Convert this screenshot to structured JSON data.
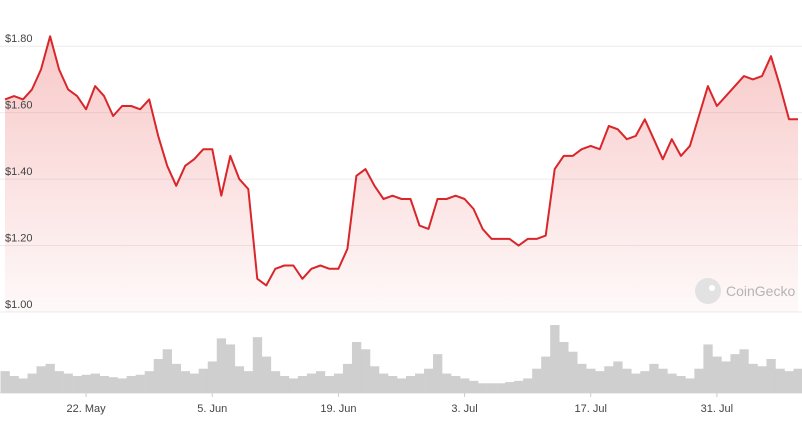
{
  "chart_data": {
    "type": "line",
    "categories": [
      null,
      null,
      null,
      null,
      null,
      null,
      null,
      null,
      null,
      "22. May",
      null,
      null,
      null,
      null,
      null,
      null,
      null,
      null,
      null,
      null,
      null,
      null,
      null,
      "5. Jun",
      null,
      null,
      null,
      null,
      null,
      null,
      null,
      null,
      null,
      null,
      null,
      null,
      null,
      "19. Jun",
      null,
      null,
      null,
      null,
      null,
      null,
      null,
      null,
      null,
      null,
      null,
      null,
      null,
      "3. Jul",
      null,
      null,
      null,
      null,
      null,
      null,
      null,
      null,
      null,
      null,
      null,
      null,
      null,
      "17. Jul",
      null,
      null,
      null,
      null,
      null,
      null,
      null,
      null,
      null,
      null,
      null,
      null,
      null,
      "31. Jul",
      null,
      null,
      null,
      null,
      null,
      null,
      null,
      null,
      null
    ],
    "series": [
      {
        "name": "Price",
        "color": "#d9262a",
        "values": [
          1.64,
          1.65,
          1.64,
          1.67,
          1.73,
          1.83,
          1.73,
          1.67,
          1.65,
          1.61,
          1.68,
          1.65,
          1.59,
          1.62,
          1.62,
          1.61,
          1.64,
          1.53,
          1.44,
          1.38,
          1.44,
          1.46,
          1.49,
          1.49,
          1.35,
          1.47,
          1.4,
          1.37,
          1.1,
          1.08,
          1.13,
          1.14,
          1.14,
          1.1,
          1.13,
          1.14,
          1.13,
          1.13,
          1.19,
          1.41,
          1.43,
          1.38,
          1.34,
          1.35,
          1.34,
          1.34,
          1.26,
          1.25,
          1.34,
          1.34,
          1.35,
          1.34,
          1.31,
          1.25,
          1.22,
          1.22,
          1.22,
          1.2,
          1.22,
          1.22,
          1.23,
          1.43,
          1.47,
          1.47,
          1.49,
          1.5,
          1.49,
          1.56,
          1.55,
          1.52,
          1.53,
          1.58,
          1.52,
          1.46,
          1.52,
          1.47,
          1.5,
          1.59,
          1.68,
          1.62,
          1.65,
          1.68,
          1.71,
          1.7,
          1.71,
          1.77,
          1.68,
          1.58,
          1.58
        ]
      },
      {
        "name": "Volume",
        "color": "#cfcfcf",
        "values": [
          18,
          14,
          12,
          16,
          22,
          24,
          18,
          16,
          14,
          15,
          16,
          14,
          13,
          12,
          14,
          15,
          18,
          28,
          36,
          24,
          18,
          16,
          20,
          26,
          45,
          40,
          22,
          18,
          46,
          30,
          18,
          14,
          12,
          14,
          16,
          18,
          14,
          16,
          24,
          42,
          36,
          22,
          16,
          14,
          12,
          14,
          16,
          20,
          32,
          16,
          14,
          12,
          10,
          8,
          8,
          8,
          9,
          10,
          12,
          20,
          30,
          56,
          42,
          34,
          24,
          20,
          18,
          22,
          26,
          20,
          16,
          18,
          24,
          20,
          16,
          14,
          12,
          20,
          40,
          30,
          26,
          32,
          36,
          24,
          22,
          28,
          20,
          18,
          20
        ]
      }
    ],
    "ylim": [
      1.0,
      1.9
    ],
    "yticks": [
      {
        "value": 1.0,
        "label": "$1.00"
      },
      {
        "value": 1.2,
        "label": "$1.20"
      },
      {
        "value": 1.4,
        "label": "$1.40"
      },
      {
        "value": 1.6,
        "label": "$1.60"
      },
      {
        "value": 1.8,
        "label": "$1.80"
      }
    ],
    "grid": true,
    "watermark": "CoinGecko"
  }
}
